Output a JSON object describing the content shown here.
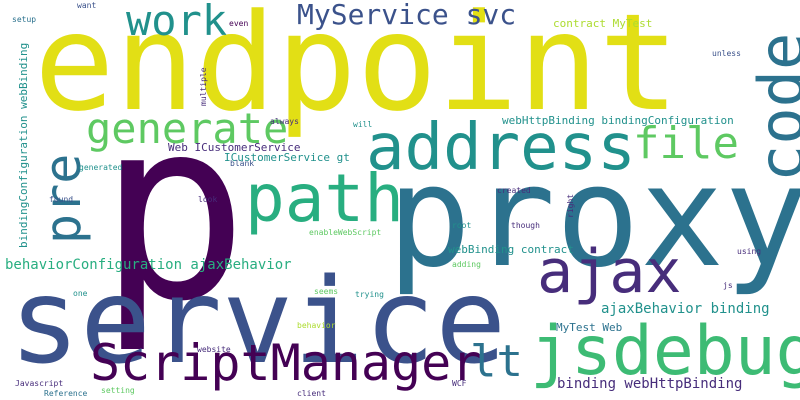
{
  "palette": {
    "background": "#ffffff",
    "dark_purple": "#440154",
    "purple": "#472d7b",
    "indigo": "#3b528b",
    "blue": "#2c728e",
    "teal": "#21918c",
    "green_teal": "#28ae80",
    "green": "#5ec962",
    "lime": "#addc30",
    "yellow": "#e2df15"
  },
  "words": [
    {
      "id": "w-endpoint",
      "text": "endpoint",
      "color": "#e2df15"
    },
    {
      "id": "w-p",
      "text": "p",
      "color": "#440154"
    },
    {
      "id": "w-proxy",
      "text": "proxy",
      "color": "#2c728e"
    },
    {
      "id": "w-service",
      "text": "service",
      "color": "#3b528b"
    },
    {
      "id": "w-address",
      "text": "address",
      "color": "#21918c"
    },
    {
      "id": "w-code",
      "text": "code",
      "color": "#2c728e"
    },
    {
      "id": "w-path",
      "text": "path",
      "color": "#28ae80"
    },
    {
      "id": "w-pre",
      "text": "pre",
      "color": "#2c728e"
    },
    {
      "id": "w-jsdebug",
      "text": "jsdebug",
      "color": "#3dbb74"
    },
    {
      "id": "w-ajax",
      "text": "ajax",
      "color": "#472d7b"
    },
    {
      "id": "w-scriptmanager",
      "text": "ScriptManager",
      "color": "#440154"
    },
    {
      "id": "w-work",
      "text": "work",
      "color": "#21918c"
    },
    {
      "id": "w-generate",
      "text": "generate",
      "color": "#5ec962"
    },
    {
      "id": "w-file",
      "text": "file",
      "color": "#5ec962"
    },
    {
      "id": "w-myservice-svc",
      "text": "MyService svc",
      "color": "#3b528b"
    },
    {
      "id": "w-lt",
      "text": "lt",
      "color": "#2c728e"
    },
    {
      "id": "w-behavior-config",
      "text": "behaviorConfiguration ajaxBehavior",
      "color": "#28ae80"
    },
    {
      "id": "w-ajaxbehavior-binding",
      "text": "ajaxBehavior binding",
      "color": "#21918c"
    },
    {
      "id": "w-binding-webhttp",
      "text": "binding webHttpBinding",
      "color": "#472d7b"
    },
    {
      "id": "w-webhttp-bindingconfig",
      "text": "webHttpBinding bindingConfiguration",
      "color": "#21918c"
    },
    {
      "id": "w-webbinding-contract",
      "text": "webBinding contract",
      "color": "#21918c"
    },
    {
      "id": "w-web-icustomer",
      "text": "Web ICustomerService",
      "color": "#472d7b"
    },
    {
      "id": "w-icustomer-gt",
      "text": "ICustomerService gt",
      "color": "#21918c"
    },
    {
      "id": "w-contract-mytest",
      "text": "contract MyTest",
      "color": "#addc30"
    },
    {
      "id": "w-mytest-web",
      "text": "MyTest Web",
      "color": "#2c728e"
    },
    {
      "id": "w-bindingconfig-webbinding",
      "text": "bindingConfiguration webBinding",
      "color": "#21918c"
    },
    {
      "id": "w-enablewebscript",
      "text": "enableWebScript",
      "color": "#5ec962"
    },
    {
      "id": "w-want",
      "text": "want",
      "color": "#3b528b"
    },
    {
      "id": "w-setup",
      "text": "setup",
      "color": "#2c728e"
    },
    {
      "id": "w-even",
      "text": "even",
      "color": "#440154"
    },
    {
      "id": "w-unless",
      "text": "unless",
      "color": "#3b528b"
    },
    {
      "id": "w-multiple",
      "text": "multiple",
      "color": "#472d7b"
    },
    {
      "id": "w-always",
      "text": "always",
      "color": "#472d7b"
    },
    {
      "id": "w-will",
      "text": "will",
      "color": "#21918c"
    },
    {
      "id": "w-blank",
      "text": "blank",
      "color": "#3b528b"
    },
    {
      "id": "w-generated",
      "text": "generated",
      "color": "#21918c"
    },
    {
      "id": "w-found",
      "text": "found",
      "color": "#3b528b"
    },
    {
      "id": "w-look",
      "text": "look",
      "color": "#472d7b"
    },
    {
      "id": "w-created",
      "text": "created",
      "color": "#472d7b"
    },
    {
      "id": "w-root",
      "text": "root",
      "color": "#21918c"
    },
    {
      "id": "w-though",
      "text": "though",
      "color": "#472d7b"
    },
    {
      "id": "w-right",
      "text": "right",
      "color": "#472d7b"
    },
    {
      "id": "w-using",
      "text": "using",
      "color": "#472d7b"
    },
    {
      "id": "w-adding",
      "text": "adding",
      "color": "#5ec962"
    },
    {
      "id": "w-one",
      "text": "one",
      "color": "#21918c"
    },
    {
      "id": "w-seems",
      "text": "seems",
      "color": "#5ec962"
    },
    {
      "id": "w-trying",
      "text": "trying",
      "color": "#21918c"
    },
    {
      "id": "w-js",
      "text": "js",
      "color": "#472d7b"
    },
    {
      "id": "w-behavior",
      "text": "behavior",
      "color": "#addc30"
    },
    {
      "id": "w-website",
      "text": "website",
      "color": "#472d7b"
    },
    {
      "id": "w-javascript",
      "text": "Javascript",
      "color": "#472d7b"
    },
    {
      "id": "w-reference",
      "text": "Reference",
      "color": "#2c728e"
    },
    {
      "id": "w-setting",
      "text": "setting",
      "color": "#5ec962"
    },
    {
      "id": "w-client",
      "text": "client",
      "color": "#472d7b"
    },
    {
      "id": "w-wcf",
      "text": "WCF",
      "color": "#472d7b"
    }
  ]
}
